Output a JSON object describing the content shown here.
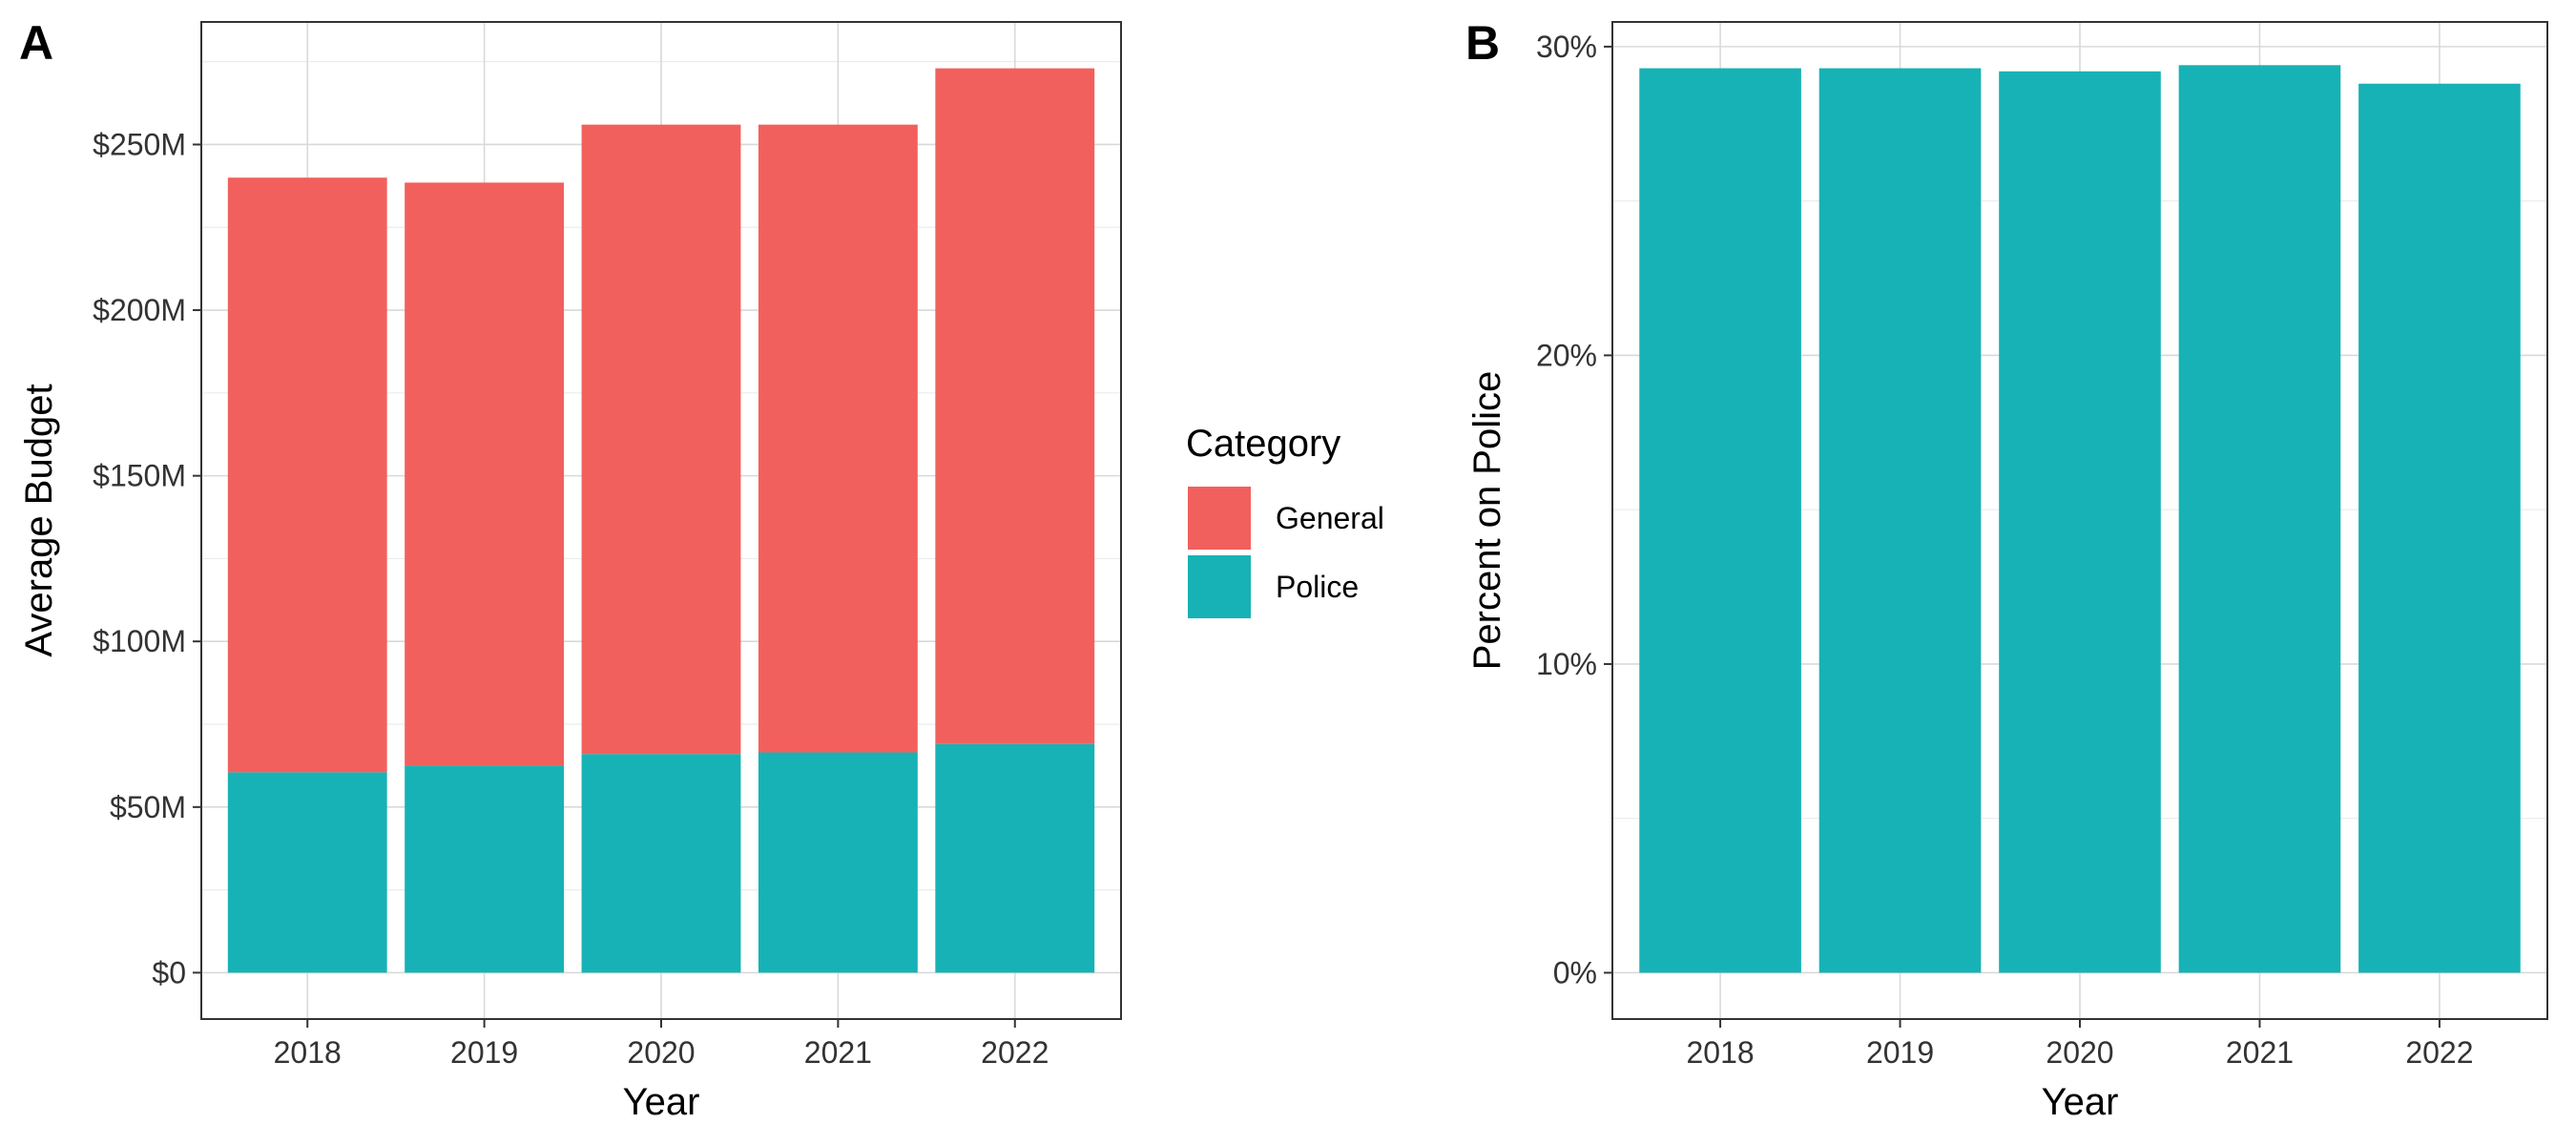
{
  "panels": {
    "a": {
      "tag": "A"
    },
    "b": {
      "tag": "B"
    }
  },
  "chart_data": [
    {
      "type": "bar",
      "stacked": true,
      "title": "",
      "categories": [
        "2018",
        "2019",
        "2020",
        "2021",
        "2022"
      ],
      "series": [
        {
          "name": "Police",
          "color": "#17B2B5",
          "values": [
            60.5,
            62.5,
            66,
            66.5,
            69
          ]
        },
        {
          "name": "General",
          "color": "#F2605D",
          "values": [
            179.5,
            176,
            190,
            189.5,
            204
          ]
        }
      ],
      "xlabel": "Year",
      "ylabel": "Average Budget",
      "ylim": [
        -14,
        287
      ],
      "yticks": [
        0,
        50,
        100,
        150,
        200,
        250
      ],
      "ytick_labels": [
        "$0",
        "$50M",
        "$100M",
        "$150M",
        "$200M",
        "$250M"
      ],
      "grid": true,
      "legend": {
        "title": "Category",
        "position": "right",
        "entries": [
          {
            "label": "General",
            "color": "#F2605D"
          },
          {
            "label": "Police",
            "color": "#17B2B5"
          }
        ]
      }
    },
    {
      "type": "bar",
      "title": "",
      "categories": [
        "2018",
        "2019",
        "2020",
        "2021",
        "2022"
      ],
      "series": [
        {
          "color": "#17B2B5",
          "values": [
            29.3,
            29.3,
            29.2,
            29.4,
            28.8
          ]
        }
      ],
      "xlabel": "Year",
      "ylabel": "Percent on Police",
      "ylim": [
        -1.5,
        30.8
      ],
      "yticks": [
        0,
        10,
        20,
        30
      ],
      "ytick_labels": [
        "0%",
        "10%",
        "20%",
        "30%"
      ],
      "grid": true
    }
  ]
}
